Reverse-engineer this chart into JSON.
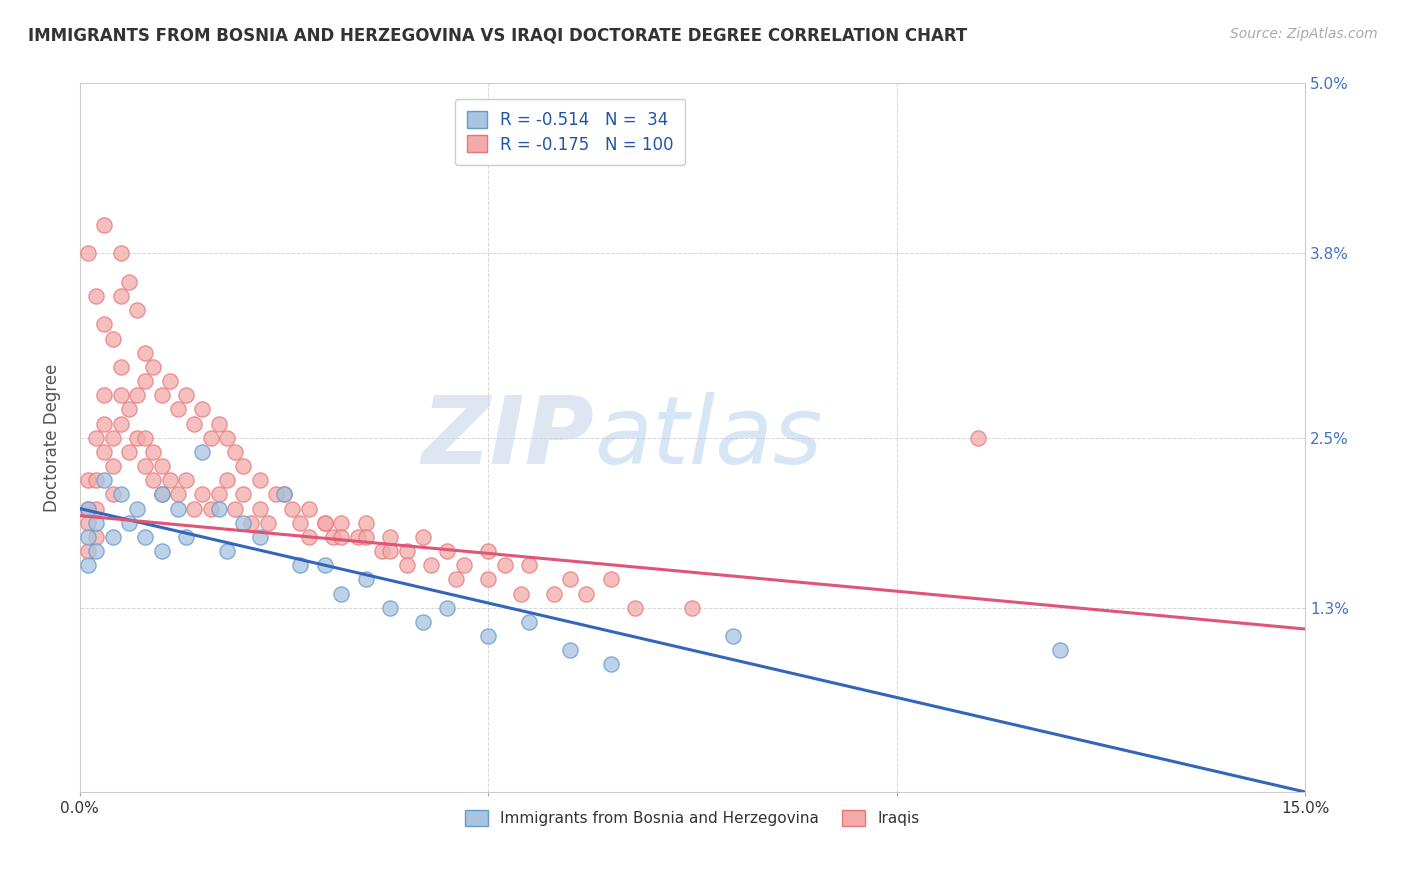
{
  "title": "IMMIGRANTS FROM BOSNIA AND HERZEGOVINA VS IRAQI DOCTORATE DEGREE CORRELATION CHART",
  "source": "Source: ZipAtlas.com",
  "ylabel": "Doctorate Degree",
  "yticks": [
    0.0,
    0.013,
    0.025,
    0.038,
    0.05
  ],
  "ytick_labels": [
    "",
    "1.3%",
    "2.5%",
    "3.8%",
    "5.0%"
  ],
  "xticks": [
    0.0,
    0.05,
    0.1,
    0.15
  ],
  "xtick_labels": [
    "0.0%",
    "",
    "",
    "15.0%"
  ],
  "legend_r1": "R = -0.514",
  "legend_n1": "N =  34",
  "legend_r2": "R = -0.175",
  "legend_n2": "N = 100",
  "color_blue_fill": "#A8C4E0",
  "color_blue_edge": "#6699CC",
  "color_pink_fill": "#F4AAAA",
  "color_pink_edge": "#E87878",
  "color_blue_line": "#3366BB",
  "color_pink_line": "#E05575",
  "watermark_zip": "ZIP",
  "watermark_atlas": "atlas",
  "xmin": 0.0,
  "xmax": 0.15,
  "ymin": 0.0,
  "ymax": 0.05,
  "blue_line_x0": 0.0,
  "blue_line_y0": 0.02,
  "blue_line_x1": 0.15,
  "blue_line_y1": 0.0,
  "pink_line_x0": 0.0,
  "pink_line_y0": 0.0195,
  "pink_line_x1": 0.15,
  "pink_line_y1": 0.0115,
  "blue_scatter_x": [
    0.001,
    0.001,
    0.001,
    0.002,
    0.002,
    0.003,
    0.004,
    0.005,
    0.006,
    0.007,
    0.008,
    0.01,
    0.01,
    0.012,
    0.013,
    0.015,
    0.017,
    0.018,
    0.02,
    0.022,
    0.025,
    0.027,
    0.03,
    0.032,
    0.035,
    0.038,
    0.042,
    0.045,
    0.05,
    0.055,
    0.06,
    0.065,
    0.08,
    0.12
  ],
  "blue_scatter_y": [
    0.02,
    0.018,
    0.016,
    0.019,
    0.017,
    0.022,
    0.018,
    0.021,
    0.019,
    0.02,
    0.018,
    0.021,
    0.017,
    0.02,
    0.018,
    0.024,
    0.02,
    0.017,
    0.019,
    0.018,
    0.021,
    0.016,
    0.016,
    0.014,
    0.015,
    0.013,
    0.012,
    0.013,
    0.011,
    0.012,
    0.01,
    0.009,
    0.011,
    0.01
  ],
  "pink_scatter_x": [
    0.001,
    0.001,
    0.001,
    0.001,
    0.002,
    0.002,
    0.002,
    0.002,
    0.003,
    0.003,
    0.003,
    0.004,
    0.004,
    0.004,
    0.005,
    0.005,
    0.005,
    0.006,
    0.006,
    0.007,
    0.007,
    0.008,
    0.008,
    0.009,
    0.009,
    0.01,
    0.01,
    0.011,
    0.012,
    0.013,
    0.014,
    0.015,
    0.016,
    0.017,
    0.018,
    0.019,
    0.02,
    0.021,
    0.022,
    0.023,
    0.025,
    0.027,
    0.028,
    0.03,
    0.031,
    0.032,
    0.034,
    0.035,
    0.037,
    0.038,
    0.04,
    0.042,
    0.045,
    0.047,
    0.05,
    0.052,
    0.055,
    0.06,
    0.065,
    0.11,
    0.001,
    0.002,
    0.003,
    0.003,
    0.004,
    0.005,
    0.005,
    0.006,
    0.007,
    0.008,
    0.008,
    0.009,
    0.01,
    0.011,
    0.012,
    0.013,
    0.014,
    0.015,
    0.016,
    0.017,
    0.018,
    0.019,
    0.02,
    0.022,
    0.024,
    0.026,
    0.028,
    0.03,
    0.032,
    0.035,
    0.038,
    0.04,
    0.043,
    0.046,
    0.05,
    0.054,
    0.058,
    0.062,
    0.068,
    0.075
  ],
  "pink_scatter_y": [
    0.022,
    0.02,
    0.019,
    0.017,
    0.025,
    0.022,
    0.02,
    0.018,
    0.028,
    0.026,
    0.024,
    0.025,
    0.023,
    0.021,
    0.03,
    0.028,
    0.026,
    0.027,
    0.024,
    0.028,
    0.025,
    0.025,
    0.023,
    0.024,
    0.022,
    0.023,
    0.021,
    0.022,
    0.021,
    0.022,
    0.02,
    0.021,
    0.02,
    0.021,
    0.022,
    0.02,
    0.021,
    0.019,
    0.02,
    0.019,
    0.021,
    0.019,
    0.018,
    0.019,
    0.018,
    0.019,
    0.018,
    0.019,
    0.017,
    0.018,
    0.017,
    0.018,
    0.017,
    0.016,
    0.017,
    0.016,
    0.016,
    0.015,
    0.015,
    0.025,
    0.038,
    0.035,
    0.04,
    0.033,
    0.032,
    0.038,
    0.035,
    0.036,
    0.034,
    0.031,
    0.029,
    0.03,
    0.028,
    0.029,
    0.027,
    0.028,
    0.026,
    0.027,
    0.025,
    0.026,
    0.025,
    0.024,
    0.023,
    0.022,
    0.021,
    0.02,
    0.02,
    0.019,
    0.018,
    0.018,
    0.017,
    0.016,
    0.016,
    0.015,
    0.015,
    0.014,
    0.014,
    0.014,
    0.013,
    0.013
  ]
}
